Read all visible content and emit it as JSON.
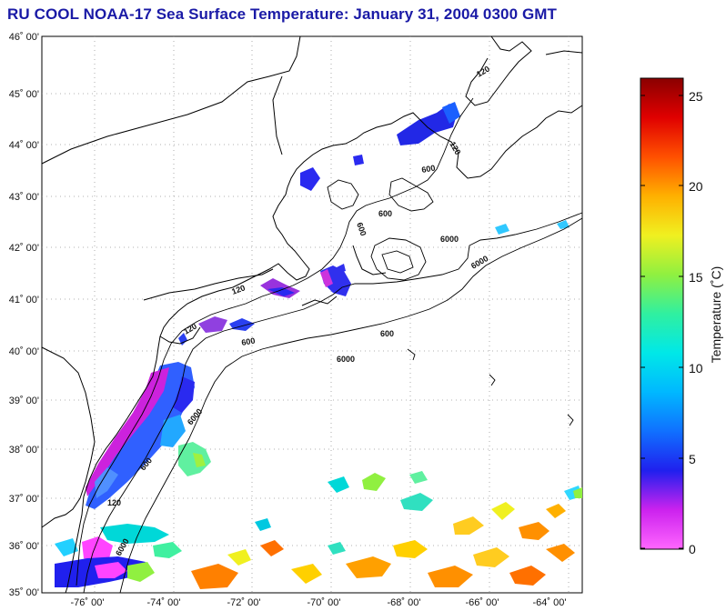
{
  "title": "RU COOL  NOAA-17  Sea Surface Temperature:  January 31, 2004 0300 GMT",
  "map": {
    "lat_labels": [
      "46˚ 00'",
      "45˚ 00'",
      "44˚ 00'",
      "43˚ 00'",
      "42˚ 00'",
      "41˚ 00'",
      "40˚ 00'",
      "39˚ 00'",
      "38˚ 00'",
      "37˚ 00'",
      "36˚ 00'",
      "35˚ 00'"
    ],
    "lon_labels": [
      "-76˚ 00'",
      "-74˚ 00'",
      "-72˚ 00'",
      "-70˚ 00'",
      "-68˚ 00'",
      "-66˚ 00'",
      "-64˚ 00'"
    ],
    "lat_range": [
      35,
      46
    ],
    "lon_range": [
      -77,
      -63.3
    ],
    "isobath_labels": [
      "120",
      "120",
      "600",
      "600",
      "600",
      "6000",
      "120",
      "600",
      "6000",
      "120",
      "600",
      "6000",
      "600",
      "6000",
      "120",
      "6000"
    ]
  },
  "colorbar": {
    "label": "Temperature (˚C)",
    "tick_labels": [
      "0",
      "5",
      "10",
      "15",
      "20",
      "25"
    ],
    "range": [
      0,
      26
    ],
    "colors": [
      "#ff66ff",
      "#cc22ee",
      "#2020ee",
      "#1070ff",
      "#00b8ff",
      "#00e8e8",
      "#30f0a0",
      "#90f040",
      "#f0f020",
      "#ffb000",
      "#ff5000",
      "#e00000",
      "#8a0000"
    ]
  }
}
